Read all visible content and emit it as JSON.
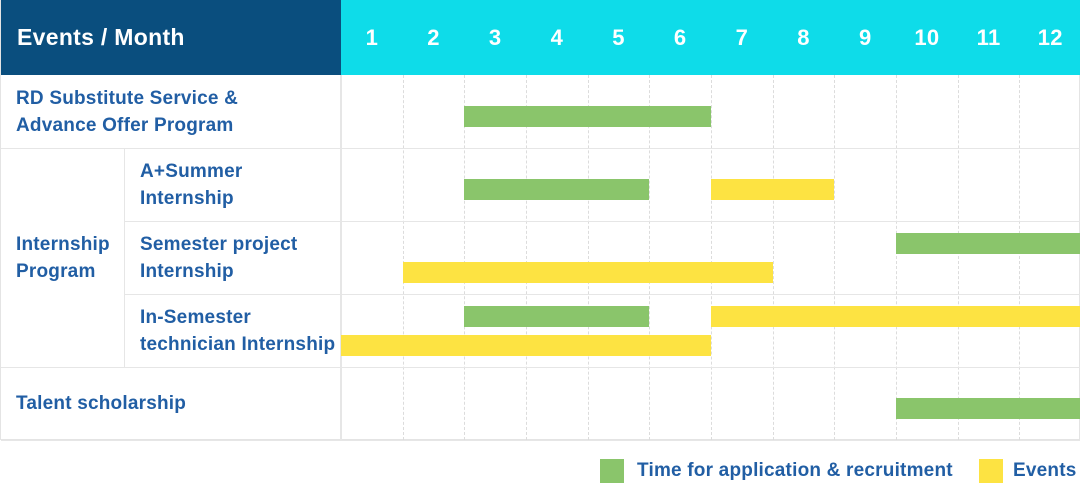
{
  "header": {
    "title": "Events / Month",
    "months": [
      "1",
      "2",
      "3",
      "4",
      "5",
      "6",
      "7",
      "8",
      "9",
      "10",
      "11",
      "12"
    ]
  },
  "colors": {
    "header_bg": "#0a4e7e",
    "month_header_bg": "#0edce9",
    "header_text": "#ffffff",
    "label_text": "#215ea4",
    "application_green": "#8ac56b",
    "events_yellow": "#fde342",
    "grid_line": "#e4e4e4"
  },
  "legend": {
    "items": [
      {
        "color_key": "application_green",
        "label": "Time for application & recruitment"
      },
      {
        "color_key": "events_yellow",
        "label": "Events"
      }
    ]
  },
  "chart_data": {
    "type": "gantt",
    "title": "Events / Month",
    "x_categories": [
      "1",
      "2",
      "3",
      "4",
      "5",
      "6",
      "7",
      "8",
      "9",
      "10",
      "11",
      "12"
    ],
    "x_range": [
      1,
      12
    ],
    "grid": true,
    "legend_position": "bottom-right",
    "series_meaning": {
      "green": "Time for application & recruitment",
      "yellow": "Events"
    },
    "groups": [
      {
        "label_lines": [
          "Internship",
          "Program"
        ],
        "from_row": 1,
        "to_row": 3
      }
    ],
    "rows": [
      {
        "grouped": false,
        "label_lines": [
          "RD Substitute Service &",
          "Advance Offer Program"
        ],
        "bars": [
          {
            "color": "green",
            "start_month": 3,
            "end_month": 6,
            "lane": "single"
          }
        ]
      },
      {
        "grouped": true,
        "label_lines": [
          "A+Summer",
          "Internship"
        ],
        "bars": [
          {
            "color": "green",
            "start_month": 3,
            "end_month": 5,
            "lane": "single"
          },
          {
            "color": "yellow",
            "start_month": 7,
            "end_month": 8,
            "lane": "single"
          }
        ]
      },
      {
        "grouped": true,
        "label_lines": [
          "Semester project",
          "Internship"
        ],
        "bars": [
          {
            "color": "green",
            "start_month": 10,
            "end_month": 12,
            "lane": "top"
          },
          {
            "color": "yellow",
            "start_month": 2,
            "end_month": 7,
            "lane": "bottom"
          }
        ]
      },
      {
        "grouped": true,
        "label_lines": [
          "In-Semester",
          "technician Internship"
        ],
        "bars": [
          {
            "color": "green",
            "start_month": 3,
            "end_month": 5,
            "lane": "top"
          },
          {
            "color": "yellow",
            "start_month": 7,
            "end_month": 12,
            "lane": "top"
          },
          {
            "color": "yellow",
            "start_month": 1,
            "end_month": 6,
            "lane": "bottom"
          }
        ]
      },
      {
        "grouped": false,
        "label_lines": [
          "Talent scholarship"
        ],
        "bars": [
          {
            "color": "green",
            "start_month": 10,
            "end_month": 12,
            "lane": "single"
          }
        ]
      }
    ]
  }
}
